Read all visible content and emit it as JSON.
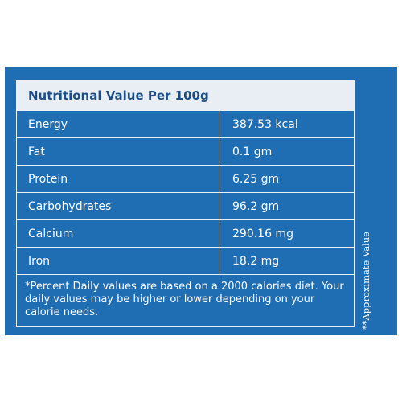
{
  "table": {
    "title": "Nutritional Value Per 100g",
    "rows": [
      {
        "name": "Energy",
        "value": "387.53 kcal"
      },
      {
        "name": "Fat",
        "value": "0.1 gm"
      },
      {
        "name": "Protein",
        "value": "6.25 gm"
      },
      {
        "name": "Carbohydrates",
        "value": "96.2 gm"
      },
      {
        "name": "Calcium",
        "value": "290.16 mg"
      },
      {
        "name": "Iron",
        "value": "18.2 mg"
      }
    ],
    "footnote": "*Percent Daily values are based on a 2000 calories diet. Your daily values may be higher or lower depending on your calorie needs."
  },
  "side_note": "**Approximate Value",
  "colors": {
    "panel": "#1f6db3",
    "header_bg": "#e9eef5",
    "header_text": "#1d4f86",
    "text": "#ffffff"
  }
}
